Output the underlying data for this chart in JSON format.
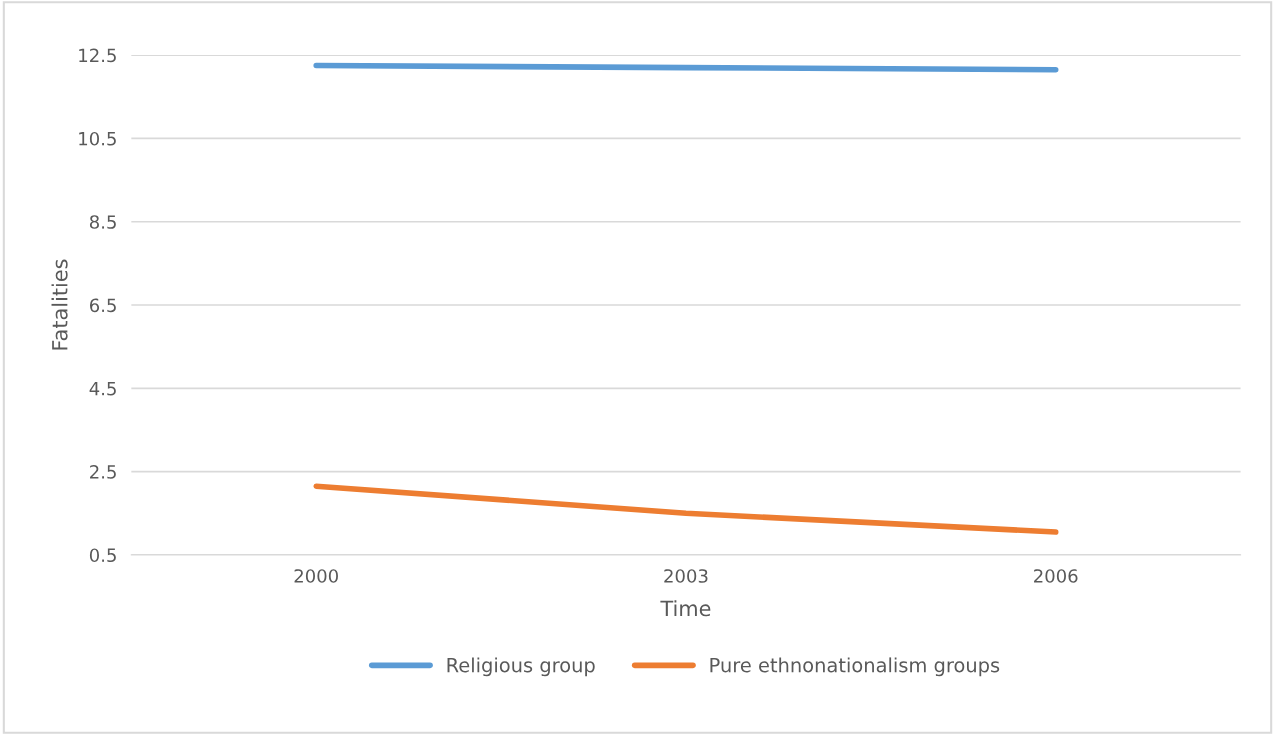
{
  "chart_data": {
    "type": "line",
    "xlabel": "Time",
    "ylabel": "Fatalities",
    "categories": [
      "2000",
      "2003",
      "2006"
    ],
    "series": [
      {
        "name": "Religious group",
        "color": "#5b9bd5",
        "values": [
          12.25,
          12.2,
          12.15
        ]
      },
      {
        "name": "Pure ethnonationalism groups",
        "color": "#ed7d31",
        "values": [
          2.15,
          1.5,
          1.05
        ]
      }
    ],
    "ylim": [
      0.5,
      12.5
    ],
    "yticks": [
      0.5,
      2.5,
      4.5,
      6.5,
      8.5,
      10.5,
      12.5
    ],
    "grid": "y",
    "legend": "bottom",
    "marker": "none",
    "line_style": "solid"
  }
}
